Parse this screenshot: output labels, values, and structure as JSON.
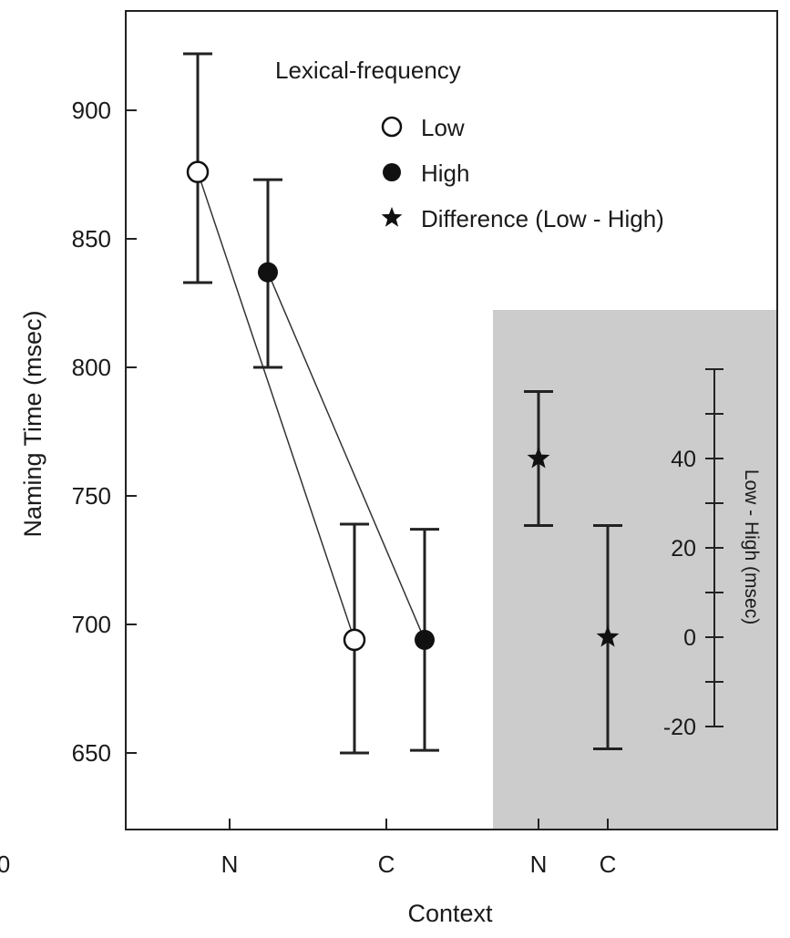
{
  "chart_data": {
    "type": "scatter",
    "title": "",
    "xlabel": "Context",
    "ylabel": "Naming Time (msec)",
    "ylabel_right": "Low - High (msec)",
    "categories": [
      "N",
      "C",
      "N",
      "C"
    ],
    "left_yticks": [
      650,
      700,
      750,
      800,
      850,
      900
    ],
    "left_ylim": [
      620,
      935
    ],
    "left_corner_label": "0",
    "right_yticks": [
      -20,
      0,
      20,
      40
    ],
    "right_ylim": [
      -20,
      60
    ],
    "legend_title": "Lexical-frequency",
    "legend_position": "top-right",
    "grid": false,
    "series": [
      {
        "name": "Low",
        "marker": "open-circle",
        "context": [
          "N",
          "C"
        ],
        "values": [
          876,
          694
        ],
        "error_low": [
          833,
          650
        ],
        "error_high": [
          922,
          739
        ]
      },
      {
        "name": "High",
        "marker": "filled-circle",
        "context": [
          "N",
          "C"
        ],
        "values": [
          837,
          694
        ],
        "error_low": [
          800,
          651
        ],
        "error_high": [
          873,
          737
        ]
      },
      {
        "name": "Difference (Low - High)",
        "marker": "star",
        "axis": "right",
        "context": [
          "N",
          "C"
        ],
        "values": [
          40,
          0
        ],
        "error_low": [
          25,
          -25
        ],
        "error_high": [
          55,
          25
        ]
      }
    ],
    "shaded_region_color": "#cccccc"
  }
}
